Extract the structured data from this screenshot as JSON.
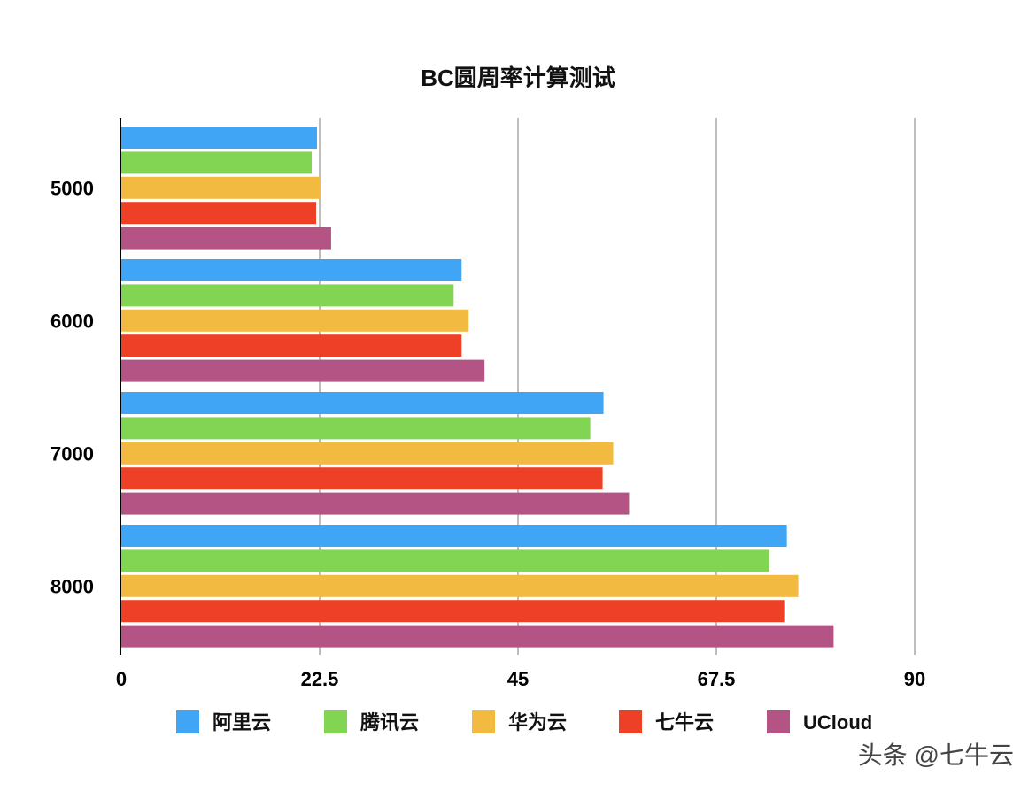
{
  "chart_data": {
    "type": "bar",
    "orientation": "horizontal",
    "title": "BC圆周率计算测试",
    "xlabel": "",
    "ylabel": "",
    "categories": [
      "5000",
      "6000",
      "7000",
      "8000"
    ],
    "xlim": [
      0,
      90
    ],
    "xticks": [
      "0",
      "22.5",
      "45",
      "67.5",
      "90"
    ],
    "grid": true,
    "legend_position": "bottom",
    "series": [
      {
        "name": "阿里云",
        "color": "#41A5F5",
        "values": [
          22.2,
          38.6,
          54.7,
          75.5
        ]
      },
      {
        "name": "腾讯云",
        "color": "#82D553",
        "values": [
          21.6,
          37.7,
          53.2,
          73.5
        ]
      },
      {
        "name": "华为云",
        "color": "#F2BA40",
        "values": [
          22.6,
          39.4,
          55.8,
          76.8
        ]
      },
      {
        "name": "七牛云",
        "color": "#EE4027",
        "values": [
          22.1,
          38.6,
          54.6,
          75.2
        ]
      },
      {
        "name": "UCloud",
        "color": "#B35484",
        "values": [
          23.8,
          41.2,
          57.6,
          80.8
        ]
      }
    ]
  },
  "watermark": "头条 @七牛云"
}
